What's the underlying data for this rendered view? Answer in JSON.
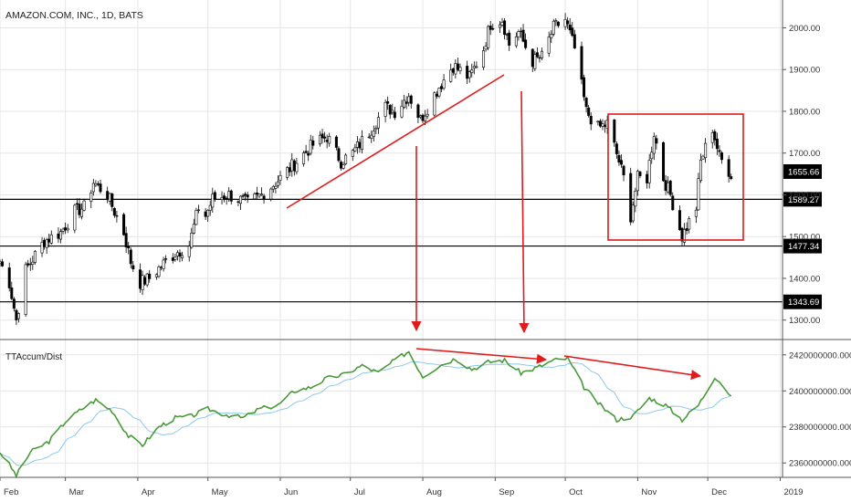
{
  "header": {
    "title": "AMAZON.COM, INC., 1D, BATS"
  },
  "indicator": {
    "name": "TTAccum/Dist"
  },
  "colors": {
    "bull": "#ffffff",
    "bear": "#000000",
    "wick": "#000000",
    "accum_line": "#4a9a3a",
    "accum_ma": "#8ec8e8",
    "annotation": "#e01b1b",
    "hline": "#000000",
    "grid": "#e6e6e6",
    "axis_text": "#333333"
  },
  "chart_data": [
    {
      "type": "candlestick",
      "title": "AMAZON.COM, INC., 1D, BATS",
      "y_ticks": [
        "1300.00",
        "1400.00",
        "1500.00",
        "1600.00",
        "1700.00",
        "1800.00",
        "1900.00",
        "2000.00"
      ],
      "y_range": [
        1260,
        2060
      ],
      "x_ticks": [
        "Feb",
        "Mar",
        "Apr",
        "May",
        "Jun",
        "Jul",
        "Aug",
        "Sep",
        "Oct",
        "Nov",
        "Dec",
        "2019"
      ],
      "x_start": "2018-02-01",
      "x_end": "2019-01-02",
      "horizontal_levels": [
        "1589.27",
        "1477.34",
        "1343.69"
      ],
      "last_price": "1655.66",
      "anchors": [
        [
          "2018-02-01",
          1440
        ],
        [
          "2018-02-05",
          1390
        ],
        [
          "2018-02-08",
          1300
        ],
        [
          "2018-02-12",
          1420
        ],
        [
          "2018-02-20",
          1490
        ],
        [
          "2018-02-27",
          1510
        ],
        [
          "2018-03-05",
          1560
        ],
        [
          "2018-03-09",
          1570
        ],
        [
          "2018-03-13",
          1630
        ],
        [
          "2018-03-19",
          1600
        ],
        [
          "2018-03-22",
          1560
        ],
        [
          "2018-03-26",
          1510
        ],
        [
          "2018-03-29",
          1440
        ],
        [
          "2018-04-02",
          1390
        ],
        [
          "2018-04-06",
          1400
        ],
        [
          "2018-04-11",
          1430
        ],
        [
          "2018-04-17",
          1460
        ],
        [
          "2018-04-23",
          1480
        ],
        [
          "2018-04-27",
          1570
        ],
        [
          "2018-04-30",
          1550
        ],
        [
          "2018-05-03",
          1590
        ],
        [
          "2018-05-10",
          1600
        ],
        [
          "2018-05-18",
          1580
        ],
        [
          "2018-05-24",
          1600
        ],
        [
          "2018-06-01",
          1640
        ],
        [
          "2018-06-08",
          1680
        ],
        [
          "2018-06-15",
          1720
        ],
        [
          "2018-06-21",
          1740
        ],
        [
          "2018-06-27",
          1680
        ],
        [
          "2018-07-02",
          1700
        ],
        [
          "2018-07-09",
          1750
        ],
        [
          "2018-07-16",
          1810
        ],
        [
          "2018-07-20",
          1800
        ],
        [
          "2018-07-26",
          1840
        ],
        [
          "2018-07-31",
          1780
        ],
        [
          "2018-08-07",
          1850
        ],
        [
          "2018-08-14",
          1910
        ],
        [
          "2018-08-21",
          1880
        ],
        [
          "2018-08-27",
          1950
        ],
        [
          "2018-08-30",
          2010
        ],
        [
          "2018-09-04",
          2020
        ],
        [
          "2018-09-07",
          1960
        ],
        [
          "2018-09-11",
          1990
        ],
        [
          "2018-09-17",
          1920
        ],
        [
          "2018-09-21",
          1930
        ],
        [
          "2018-09-26",
          2000
        ],
        [
          "2018-10-01",
          2020
        ],
        [
          "2018-10-05",
          1950
        ],
        [
          "2018-10-10",
          1800
        ],
        [
          "2018-10-15",
          1760
        ],
        [
          "2018-10-19",
          1770
        ],
        [
          "2018-10-24",
          1680
        ],
        [
          "2018-10-26",
          1640
        ],
        [
          "2018-10-29",
          1550
        ],
        [
          "2018-11-01",
          1640
        ],
        [
          "2018-11-05",
          1640
        ],
        [
          "2018-11-08",
          1750
        ],
        [
          "2018-11-12,",
          1640
        ],
        [
          "2018-11-15",
          1600
        ],
        [
          "2018-11-20",
          1500
        ],
        [
          "2018-11-26",
          1570
        ],
        [
          "2018-11-28",
          1680
        ],
        [
          "2018-12-03",
          1760
        ],
        [
          "2018-12-06",
          1690
        ],
        [
          "2018-12-11",
          1650
        ]
      ]
    },
    {
      "type": "line",
      "title": "TTAccum/Dist",
      "y_ticks": [
        "2360000000.0000",
        "2380000000.0000",
        "2400000000.0000",
        "2420000000.0000"
      ],
      "y_range": [
        2352000000,
        2428000000
      ],
      "series": [
        {
          "values": [
            [
              "2018-02-01",
              2366000000
            ],
            [
              "2018-02-05",
              2359000000
            ],
            [
              "2018-02-08",
              2353000000
            ],
            [
              "2018-02-14",
              2366000000
            ],
            [
              "2018-02-22",
              2372000000
            ],
            [
              "2018-03-01",
              2383000000
            ],
            [
              "2018-03-08",
              2390000000
            ],
            [
              "2018-03-14",
              2395000000
            ],
            [
              "2018-03-21",
              2389000000
            ],
            [
              "2018-03-28",
              2375000000
            ],
            [
              "2018-04-03",
              2370000000
            ],
            [
              "2018-04-10",
              2380000000
            ],
            [
              "2018-04-17",
              2385000000
            ],
            [
              "2018-04-24",
              2386000000
            ],
            [
              "2018-05-01",
              2390000000
            ],
            [
              "2018-05-08",
              2387000000
            ],
            [
              "2018-05-16",
              2385000000
            ],
            [
              "2018-05-23",
              2390000000
            ],
            [
              "2018-05-31",
              2392000000
            ],
            [
              "2018-06-07",
              2400000000
            ],
            [
              "2018-06-14",
              2402000000
            ],
            [
              "2018-06-21",
              2407000000
            ],
            [
              "2018-06-28",
              2409000000
            ],
            [
              "2018-07-06",
              2414000000
            ],
            [
              "2018-07-13",
              2410000000
            ],
            [
              "2018-07-20",
              2417000000
            ],
            [
              "2018-07-26",
              2422000000
            ],
            [
              "2018-08-01",
              2408000000
            ],
            [
              "2018-08-08",
              2414000000
            ],
            [
              "2018-08-15",
              2418000000
            ],
            [
              "2018-08-22",
              2412000000
            ],
            [
              "2018-08-29",
              2416000000
            ],
            [
              "2018-09-05",
              2417000000
            ],
            [
              "2018-09-12",
              2410000000
            ],
            [
              "2018-09-19",
              2413000000
            ],
            [
              "2018-09-26",
              2417000000
            ],
            [
              "2018-10-02",
              2418000000
            ],
            [
              "2018-10-09",
              2402000000
            ],
            [
              "2018-10-16",
              2392000000
            ],
            [
              "2018-10-23",
              2384000000
            ],
            [
              "2018-10-30",
              2386000000
            ],
            [
              "2018-11-06",
              2396000000
            ],
            [
              "2018-11-13",
              2392000000
            ],
            [
              "2018-11-20",
              2384000000
            ],
            [
              "2018-11-27",
              2392000000
            ],
            [
              "2018-12-04",
              2408000000
            ],
            [
              "2018-12-07",
              2404000000
            ],
            [
              "2018-12-11",
              2396000000
            ]
          ]
        }
      ]
    }
  ]
}
